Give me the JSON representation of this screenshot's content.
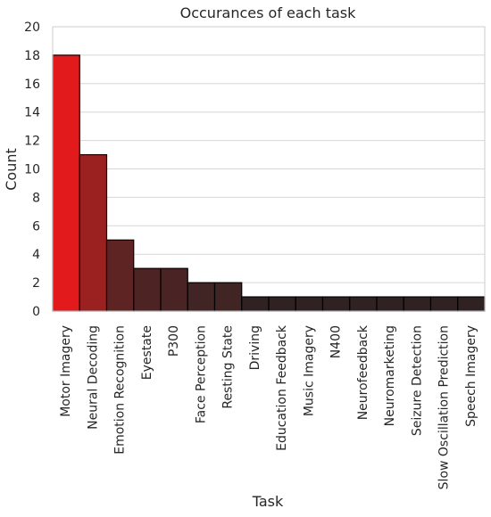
{
  "chart_data": {
    "type": "bar",
    "title": "Occurances of each task",
    "xlabel": "Task",
    "ylabel": "Count",
    "ylim": [
      0,
      20
    ],
    "yticks": [
      0,
      2,
      4,
      6,
      8,
      10,
      12,
      14,
      16,
      18,
      20
    ],
    "grid": "horizontal",
    "categories": [
      "Motor Imagery",
      "Neural Decoding",
      "Emotion Recognition",
      "Eyestate",
      "P300",
      "Face Perception",
      "Resting State",
      "Driving",
      "Education Feedback",
      "Music Imagery",
      "N400",
      "Neurofeedback",
      "Neuromarketing",
      "Seizure Detection",
      "Slow Oscillation Prediction",
      "Speech Imagery"
    ],
    "values": [
      18,
      11,
      5,
      3,
      3,
      2,
      2,
      1,
      1,
      1,
      1,
      1,
      1,
      1,
      1,
      1
    ],
    "colors": [
      "#e31a1c",
      "#9b2121",
      "#5e2424",
      "#4d2323",
      "#4a2424",
      "#412424",
      "#412525",
      "#302123",
      "#302123",
      "#302123",
      "#302123",
      "#302123",
      "#302123",
      "#302123",
      "#302123",
      "#302123"
    ],
    "bar_edge_color": "#000000",
    "grid_color": "#d6d6d6",
    "frame_color": "#cccccc"
  }
}
